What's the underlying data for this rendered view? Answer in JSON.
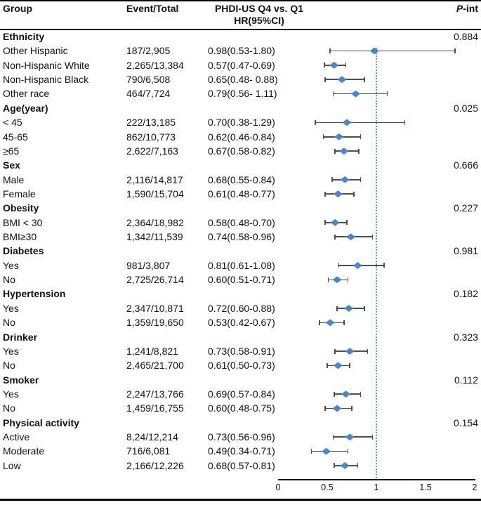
{
  "figure": {
    "header": {
      "group": "Group",
      "event_total": "Event/Total",
      "comparison_line1": "PHDI-US Q4 vs. Q1",
      "comparison_line2": "HR(95%CI)",
      "p_int_italic": "P",
      "p_int_rest": "-int"
    }
  },
  "chart_data": {
    "type": "scatter",
    "variant": "forest-plot",
    "title": "Subgroup forest plot of PHDI-US Q4 vs. Q1 hazard ratios",
    "xlabel": "",
    "ylabel": "",
    "x_axis": {
      "min": 0,
      "max": 2,
      "ticks": [
        "0",
        "0.5",
        "1",
        "1.5",
        "2"
      ],
      "tick_values": [
        0,
        0.5,
        1,
        1.5,
        2
      ],
      "reference_line": 1,
      "grid": false
    },
    "colors": {
      "diamond": "#4a86c8",
      "ci_bar": "#4d4d4d",
      "reference_line": "#5b9bd5",
      "rules": "#000000"
    },
    "rows": [
      {
        "kind": "group",
        "label": "Ethnicity",
        "p_int": "0.884"
      },
      {
        "kind": "item",
        "label": "Other Hispanic",
        "event_total": "187/2,905",
        "ci_text": "0.98(0.53-1.80)",
        "hr": 0.98,
        "lo": 0.53,
        "hi": 1.8
      },
      {
        "kind": "item",
        "label": "Non-Hispanic White",
        "event_total": "2,265/13,384",
        "ci_text": "0.57(0.47-0.69)",
        "hr": 0.57,
        "lo": 0.47,
        "hi": 0.69
      },
      {
        "kind": "item",
        "label": "Non-Hispanic Black",
        "event_total": "790/6,508",
        "ci_text": "0.65(0.48- 0.88)",
        "hr": 0.65,
        "lo": 0.48,
        "hi": 0.88
      },
      {
        "kind": "item",
        "label": "Other race",
        "event_total": "464/7,724",
        "ci_text": "0.79(0.56- 1.11)",
        "hr": 0.79,
        "lo": 0.56,
        "hi": 1.11
      },
      {
        "kind": "group",
        "label": "Age(year)",
        "p_int": "0.025"
      },
      {
        "kind": "item",
        "label": "< 45",
        "event_total": "222/13,185",
        "ci_text": "0.70(0.38-1.29)",
        "hr": 0.7,
        "lo": 0.38,
        "hi": 1.29
      },
      {
        "kind": "item",
        "label": "45-65",
        "event_total": "862/10,773",
        "ci_text": "0.62(0.46-0.84)",
        "hr": 0.62,
        "lo": 0.46,
        "hi": 0.84
      },
      {
        "kind": "item",
        "label": "≥65",
        "event_total": "2,622/7,163",
        "ci_text": "0.67(0.58-0.82)",
        "hr": 0.67,
        "lo": 0.58,
        "hi": 0.82
      },
      {
        "kind": "group",
        "label": "Sex",
        "p_int": "0.666"
      },
      {
        "kind": "item",
        "label": "Male",
        "event_total": "2,116/14,817",
        "ci_text": "0.68(0.55-0.84)",
        "hr": 0.68,
        "lo": 0.55,
        "hi": 0.84
      },
      {
        "kind": "item",
        "label": "Female",
        "event_total": "1,590/15,704",
        "ci_text": "0.61(0.48-0.77)",
        "hr": 0.61,
        "lo": 0.48,
        "hi": 0.77
      },
      {
        "kind": "group",
        "label": "Obesity",
        "p_int": "0.227"
      },
      {
        "kind": "item",
        "label": "BMI < 30",
        "event_total": "2,364/18,982",
        "ci_text": "0.58(0.48-0.70)",
        "hr": 0.58,
        "lo": 0.48,
        "hi": 0.7
      },
      {
        "kind": "item",
        "label": "BMI≥30",
        "event_total": "1,342/11,539",
        "ci_text": "0.74(0.58-0.96)",
        "hr": 0.74,
        "lo": 0.58,
        "hi": 0.96
      },
      {
        "kind": "group",
        "label": "Diabetes",
        "p_int": "0.981"
      },
      {
        "kind": "item",
        "label": "Yes",
        "event_total": "981/3,807",
        "ci_text": "0.81(0.61-1.08)",
        "hr": 0.81,
        "lo": 0.61,
        "hi": 1.08
      },
      {
        "kind": "item",
        "label": "No",
        "event_total": "2,725/26,714",
        "ci_text": "0.60(0.51-0.71)",
        "hr": 0.6,
        "lo": 0.51,
        "hi": 0.71
      },
      {
        "kind": "group",
        "label": "Hypertension",
        "p_int": "0.182"
      },
      {
        "kind": "item",
        "label": "Yes",
        "event_total": "2,347/10,871",
        "ci_text": "0.72(0.60-0.88)",
        "hr": 0.72,
        "lo": 0.6,
        "hi": 0.88
      },
      {
        "kind": "item",
        "label": "No",
        "event_total": "1,359/19,650",
        "ci_text": "0.53(0.42-0.67)",
        "hr": 0.53,
        "lo": 0.42,
        "hi": 0.67
      },
      {
        "kind": "group",
        "label": "Drinker",
        "p_int": "0.323"
      },
      {
        "kind": "item",
        "label": "Yes",
        "event_total": "1,241/8,821",
        "ci_text": "0.73(0.58-0.91)",
        "hr": 0.73,
        "lo": 0.58,
        "hi": 0.91
      },
      {
        "kind": "item",
        "label": "No",
        "event_total": "2,465/21,700",
        "ci_text": "0.61(0.50-0.73)",
        "hr": 0.61,
        "lo": 0.5,
        "hi": 0.73
      },
      {
        "kind": "group",
        "label": "Smoker",
        "p_int": "0.112"
      },
      {
        "kind": "item",
        "label": "Yes",
        "event_total": "2,247/13,766",
        "ci_text": "0.69(0.57-0.84)",
        "hr": 0.69,
        "lo": 0.57,
        "hi": 0.84
      },
      {
        "kind": "item",
        "label": "No",
        "event_total": "1,459/16,755",
        "ci_text": "0.60(0.48-0.75)",
        "hr": 0.6,
        "lo": 0.48,
        "hi": 0.75
      },
      {
        "kind": "group",
        "label": "Physical activity",
        "p_int": "0.154"
      },
      {
        "kind": "item",
        "label": "Active",
        "event_total": "8,24/12,214",
        "ci_text": "0.73(0.56-0.96)",
        "hr": 0.73,
        "lo": 0.56,
        "hi": 0.96
      },
      {
        "kind": "item",
        "label": "Moderate",
        "event_total": "716/6,081",
        "ci_text": "0.49(0.34-0.71)",
        "hr": 0.49,
        "lo": 0.34,
        "hi": 0.71
      },
      {
        "kind": "item",
        "label": "Low",
        "event_total": "2,166/12,226",
        "ci_text": "0.68(0.57-0.81)",
        "hr": 0.68,
        "lo": 0.57,
        "hi": 0.81
      }
    ]
  }
}
